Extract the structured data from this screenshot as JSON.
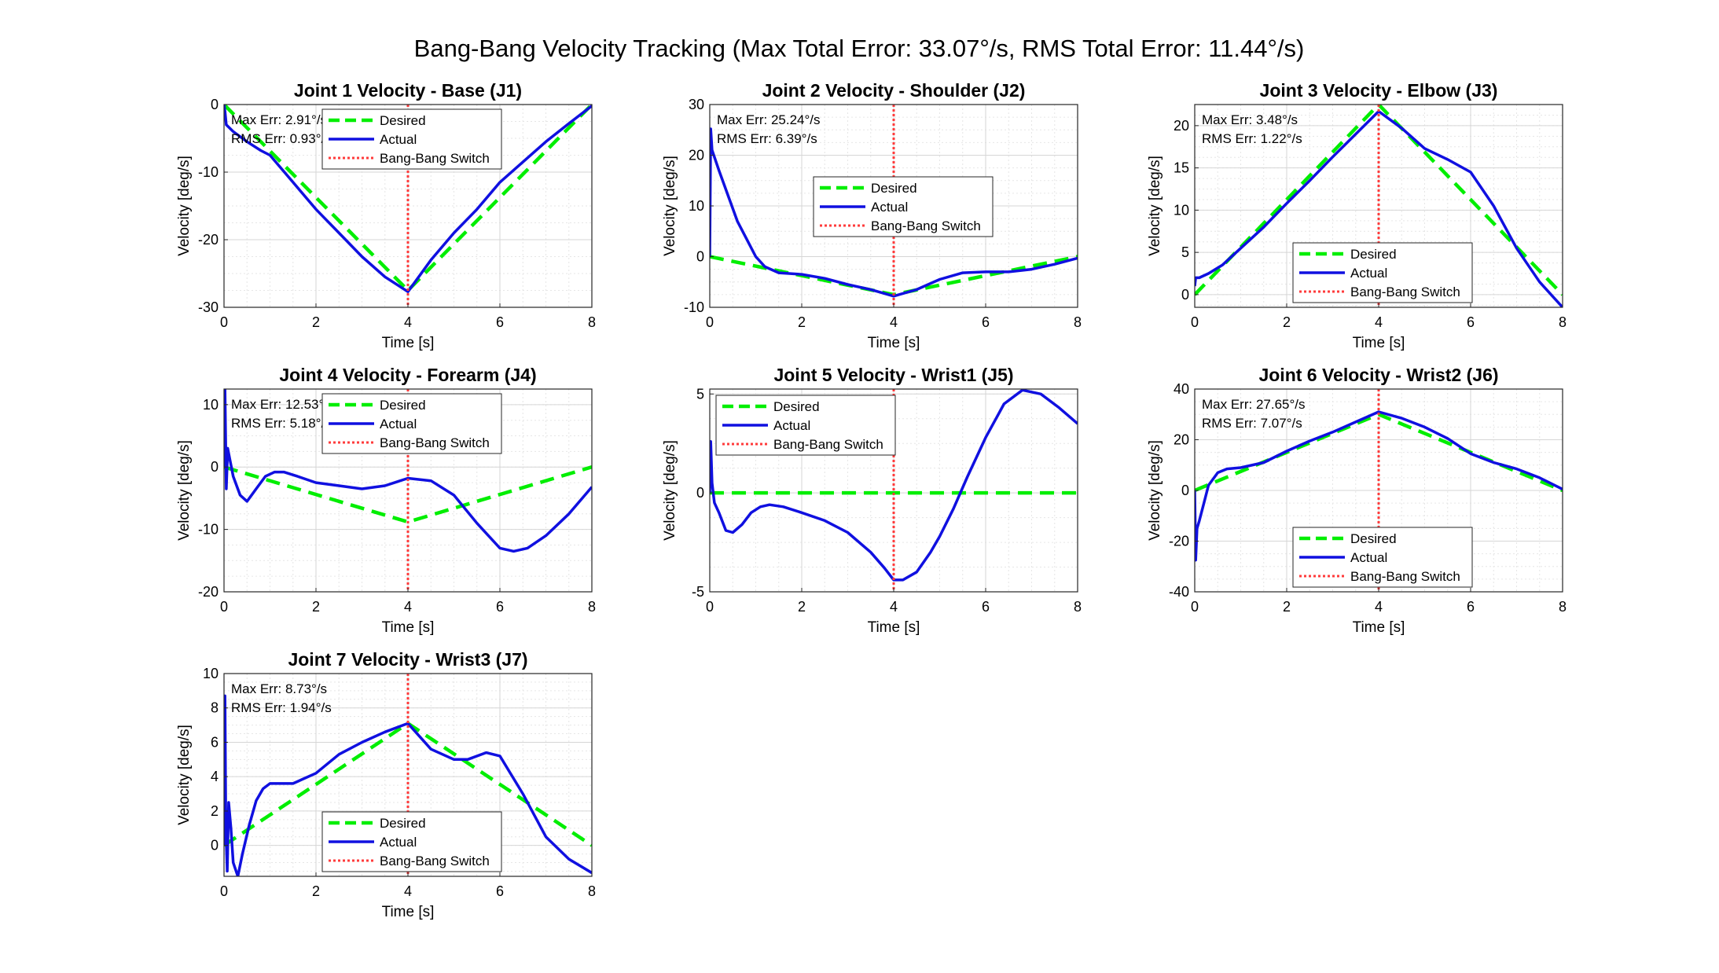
{
  "figure": {
    "title": "Bang-Bang Velocity Tracking (Max Total Error: 33.07°/s, RMS Total Error: 11.44°/s)"
  },
  "legend_labels": [
    "Desired",
    "Actual",
    "Bang-Bang Switch"
  ],
  "colors": {
    "desired": "#00ee00",
    "actual": "#1010e0",
    "switch": "#ff3b3b",
    "grid": "#e6e6e6",
    "axes": "#262626",
    "text": "#000000"
  },
  "chart_data": [
    {
      "type": "line",
      "title": "Joint 1 Velocity - Base (J1)",
      "xlabel": "Time [s]",
      "ylabel": "Velocity [deg/s]",
      "xlim": [
        0,
        8
      ],
      "ylim": [
        -30,
        0
      ],
      "xticks": [
        0,
        2,
        4,
        6,
        8
      ],
      "yticks": [
        -30,
        -20,
        -10,
        0
      ],
      "grid": true,
      "legend_position": "top-center",
      "switch_x": 4,
      "annotation": [
        "Max Err: 2.91°/s",
        "RMS Err: 0.93°/s"
      ],
      "desired": {
        "x": [
          0,
          4,
          8
        ],
        "y": [
          0,
          -27.5,
          0
        ]
      },
      "actual": {
        "x": [
          0,
          0.02,
          0.05,
          0.2,
          0.5,
          0.8,
          1.0,
          1.5,
          2.0,
          2.5,
          3.0,
          3.5,
          4.0,
          4.5,
          5.0,
          5.5,
          6.0,
          6.5,
          7.0,
          7.5,
          8.0
        ],
        "y": [
          0,
          -1.0,
          -3.0,
          -4.0,
          -5.5,
          -6.8,
          -7.5,
          -11.5,
          -15.5,
          -19.0,
          -22.5,
          -25.5,
          -27.7,
          -23.0,
          -19.0,
          -15.5,
          -11.5,
          -8.5,
          -5.5,
          -2.8,
          -0.2
        ]
      }
    },
    {
      "type": "line",
      "title": "Joint 2 Velocity - Shoulder (J2)",
      "xlabel": "Time [s]",
      "ylabel": "Velocity [deg/s]",
      "xlim": [
        0,
        8
      ],
      "ylim": [
        -10,
        30
      ],
      "xticks": [
        0,
        2,
        4,
        6,
        8
      ],
      "yticks": [
        -10,
        0,
        10,
        20,
        30
      ],
      "grid": true,
      "legend_position": "center",
      "switch_x": 4,
      "annotation": [
        "Max Err: 25.24°/s",
        "RMS Err: 6.39°/s"
      ],
      "desired": {
        "x": [
          0,
          4,
          8
        ],
        "y": [
          0,
          -7.5,
          0
        ]
      },
      "actual": {
        "x": [
          0,
          0.02,
          0.05,
          0.2,
          0.4,
          0.6,
          0.8,
          1.0,
          1.2,
          1.5,
          2.0,
          2.5,
          3.0,
          3.5,
          4.0,
          4.5,
          5.0,
          5.5,
          6.0,
          6.5,
          7.0,
          7.5,
          8.0
        ],
        "y": [
          0,
          25.2,
          21.0,
          17.0,
          12.0,
          7.0,
          3.5,
          0.0,
          -2.0,
          -3.2,
          -3.5,
          -4.3,
          -5.5,
          -6.5,
          -7.8,
          -6.5,
          -4.5,
          -3.2,
          -3.0,
          -3.0,
          -2.5,
          -1.5,
          -0.3
        ]
      }
    },
    {
      "type": "line",
      "title": "Joint 3 Velocity - Elbow (J3)",
      "xlabel": "Time [s]",
      "ylabel": "Velocity [deg/s]",
      "xlim": [
        0,
        8
      ],
      "ylim": [
        -1.5,
        22.5
      ],
      "xticks": [
        0,
        2,
        4,
        6,
        8
      ],
      "yticks": [
        0,
        5,
        10,
        15,
        20
      ],
      "grid": true,
      "legend_position": "bottom-center",
      "switch_x": 4,
      "annotation": [
        "Max Err: 3.48°/s",
        "RMS Err: 1.22°/s"
      ],
      "desired": {
        "x": [
          0,
          4,
          8
        ],
        "y": [
          0,
          22.5,
          0
        ]
      },
      "actual": {
        "x": [
          0,
          0.02,
          0.1,
          0.3,
          0.6,
          1.0,
          1.5,
          2.0,
          2.5,
          3.0,
          3.5,
          4.0,
          4.5,
          5.0,
          5.5,
          6.0,
          6.5,
          7.0,
          7.5,
          8.0
        ],
        "y": [
          1.0,
          2.0,
          2.0,
          2.5,
          3.5,
          5.5,
          8.0,
          10.8,
          13.5,
          16.3,
          19.0,
          21.7,
          19.7,
          17.3,
          16.0,
          14.5,
          10.5,
          5.5,
          1.5,
          -1.5
        ]
      }
    },
    {
      "type": "line",
      "title": "Joint 4 Velocity - Forearm (J4)",
      "xlabel": "Time [s]",
      "ylabel": "Velocity [deg/s]",
      "xlim": [
        0,
        8
      ],
      "ylim": [
        -20,
        12.5
      ],
      "xticks": [
        0,
        2,
        4,
        6,
        8
      ],
      "yticks": [
        -20,
        -10,
        0,
        10
      ],
      "grid": true,
      "legend_position": "top-center",
      "switch_x": 4,
      "annotation": [
        "Max Err: 12.53°/s",
        "RMS Err: 5.18°/s"
      ],
      "desired": {
        "x": [
          0,
          4,
          8
        ],
        "y": [
          0,
          -8.8,
          0
        ]
      },
      "actual": {
        "x": [
          0,
          0.02,
          0.05,
          0.08,
          0.12,
          0.2,
          0.35,
          0.5,
          0.7,
          0.9,
          1.1,
          1.3,
          1.6,
          2.0,
          2.5,
          3.0,
          3.5,
          4.0,
          4.5,
          5.0,
          5.5,
          6.0,
          6.3,
          6.6,
          7.0,
          7.5,
          8.0
        ],
        "y": [
          0,
          12.5,
          -3.5,
          3.0,
          1.5,
          -1.5,
          -4.5,
          -5.5,
          -3.5,
          -1.5,
          -0.8,
          -0.8,
          -1.5,
          -2.5,
          -3.0,
          -3.5,
          -3.0,
          -1.8,
          -2.2,
          -4.5,
          -9.0,
          -13.0,
          -13.5,
          -13.0,
          -11.0,
          -7.5,
          -3.2
        ]
      }
    },
    {
      "type": "line",
      "title": "Joint 5 Velocity - Wrist1 (J5)",
      "xlabel": "Time [s]",
      "ylabel": "Velocity [deg/s]",
      "xlim": [
        0,
        8
      ],
      "ylim": [
        -5,
        5.25
      ],
      "xticks": [
        0,
        2,
        4,
        6,
        8
      ],
      "yticks": [
        -5,
        0,
        5
      ],
      "grid": true,
      "legend_position": "top-left",
      "switch_x": 4,
      "annotation": [],
      "desired": {
        "x": [
          0,
          8
        ],
        "y": [
          0,
          0
        ]
      },
      "actual": {
        "x": [
          0,
          0.02,
          0.05,
          0.1,
          0.2,
          0.35,
          0.5,
          0.7,
          0.9,
          1.1,
          1.3,
          1.6,
          2.0,
          2.5,
          3.0,
          3.5,
          3.8,
          4.0,
          4.2,
          4.5,
          4.8,
          5.0,
          5.3,
          5.6,
          6.0,
          6.4,
          6.8,
          7.2,
          7.6,
          8.0
        ],
        "y": [
          0,
          2.6,
          0.5,
          -0.5,
          -1.0,
          -1.9,
          -2.0,
          -1.6,
          -1.0,
          -0.7,
          -0.6,
          -0.7,
          -1.0,
          -1.4,
          -2.0,
          -3.0,
          -3.8,
          -4.4,
          -4.4,
          -4.0,
          -3.0,
          -2.2,
          -0.8,
          0.8,
          2.8,
          4.5,
          5.2,
          5.0,
          4.3,
          3.5
        ]
      }
    },
    {
      "type": "line",
      "title": "Joint 6 Velocity - Wrist2 (J6)",
      "xlabel": "Time [s]",
      "ylabel": "Velocity [deg/s]",
      "xlim": [
        0,
        8
      ],
      "ylim": [
        -40,
        40
      ],
      "xticks": [
        0,
        2,
        4,
        6,
        8
      ],
      "yticks": [
        -40,
        -20,
        0,
        20,
        40
      ],
      "grid": true,
      "legend_position": "bottom-center",
      "switch_x": 4,
      "annotation": [
        "Max Err: 27.65°/s",
        "RMS Err: 7.07°/s"
      ],
      "desired": {
        "x": [
          0,
          4,
          8
        ],
        "y": [
          0,
          30,
          0
        ]
      },
      "actual": {
        "x": [
          0,
          0.02,
          0.05,
          0.1,
          0.2,
          0.3,
          0.5,
          0.7,
          1.0,
          1.5,
          2.0,
          2.5,
          3.0,
          3.5,
          4.0,
          4.5,
          5.0,
          5.5,
          6.0,
          6.5,
          7.0,
          7.5,
          8.0
        ],
        "y": [
          0,
          -27.5,
          -15.0,
          -12.0,
          -5.0,
          2.0,
          7.0,
          8.5,
          9.0,
          11.0,
          15.5,
          19.5,
          23.0,
          27.0,
          31.0,
          28.5,
          25.0,
          20.5,
          14.5,
          11.0,
          8.5,
          5.0,
          0.5
        ]
      }
    },
    {
      "type": "line",
      "title": "Joint 7 Velocity - Wrist3 (J7)",
      "xlabel": "Time [s]",
      "ylabel": "Velocity [deg/s]",
      "xlim": [
        0,
        8
      ],
      "ylim": [
        -1.8,
        10
      ],
      "xticks": [
        0,
        2,
        4,
        6,
        8
      ],
      "yticks": [
        0,
        2,
        4,
        6,
        8,
        10
      ],
      "grid": true,
      "legend_position": "bottom-center",
      "switch_x": 4,
      "annotation": [
        "Max Err: 8.73°/s",
        "RMS Err: 1.94°/s"
      ],
      "desired": {
        "x": [
          0,
          4,
          8
        ],
        "y": [
          0,
          7.1,
          0
        ]
      },
      "actual": {
        "x": [
          0,
          0.02,
          0.04,
          0.07,
          0.1,
          0.15,
          0.2,
          0.3,
          0.4,
          0.55,
          0.7,
          0.85,
          1.0,
          1.2,
          1.5,
          2.0,
          2.5,
          3.0,
          3.5,
          4.0,
          4.5,
          5.0,
          5.3,
          5.7,
          6.0,
          6.5,
          7.0,
          7.5,
          8.0
        ],
        "y": [
          0,
          8.7,
          1.0,
          -1.5,
          2.5,
          1.0,
          -1.0,
          -1.8,
          -0.5,
          1.2,
          2.6,
          3.3,
          3.6,
          3.6,
          3.6,
          4.2,
          5.3,
          6.0,
          6.6,
          7.1,
          5.6,
          5.0,
          5.0,
          5.4,
          5.2,
          3.0,
          0.5,
          -0.8,
          -1.6
        ]
      }
    }
  ]
}
